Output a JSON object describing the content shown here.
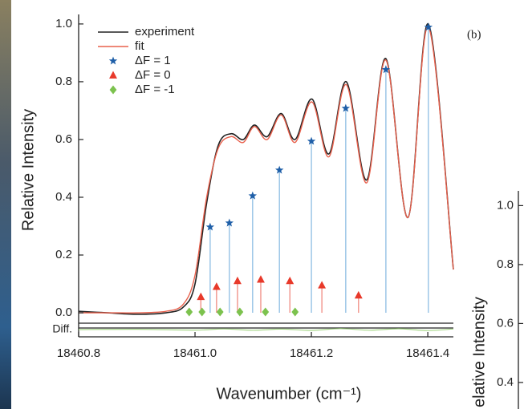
{
  "chart_data": [
    {
      "type": "line",
      "ylabel": "Relative Intensity",
      "xlabel": "Wavenumber (cm⁻¹)",
      "annotation": "(b)",
      "xlim": [
        18460.8,
        18461.444
      ],
      "ylim": [
        -0.036,
        1.033
      ],
      "xticks": [
        18460.8,
        {
          "value": 18461,
          "label": "18461.0"
        },
        18461.2,
        18461.4
      ],
      "yticks": [
        {
          "value": 0,
          "label": "0.0"
        },
        0.2,
        0.4,
        0.6,
        0.8,
        {
          "value": 1,
          "label": "1.0"
        }
      ],
      "series": [
        {
          "name": "experiment",
          "color": "#222222",
          "marker": "line",
          "x": [
            18460.8,
            18460.85,
            18460.9,
            18460.95,
            18460.98,
            18461.0,
            18461.02,
            18461.04,
            18461.062,
            18461.083,
            18461.102,
            18461.124,
            18461.148,
            18461.172,
            18461.201,
            18461.23,
            18461.26,
            18461.295,
            18461.328,
            18461.366,
            18461.401,
            18461.444
          ],
          "values": [
            0.005,
            0.0,
            -0.005,
            0.0,
            0.02,
            0.1,
            0.38,
            0.58,
            0.62,
            0.6,
            0.65,
            0.61,
            0.69,
            0.6,
            0.74,
            0.55,
            0.8,
            0.46,
            0.88,
            0.33,
            1.0,
            0.15
          ]
        },
        {
          "name": "fit",
          "color": "#e8604c",
          "marker": "line",
          "x": [
            18460.8,
            18460.85,
            18460.9,
            18460.95,
            18460.98,
            18461.0,
            18461.02,
            18461.04,
            18461.062,
            18461.083,
            18461.102,
            18461.124,
            18461.148,
            18461.172,
            18461.201,
            18461.23,
            18461.26,
            18461.295,
            18461.328,
            18461.366,
            18461.401,
            18461.444
          ],
          "values": [
            0.0,
            0.0,
            0.0,
            0.005,
            0.03,
            0.13,
            0.4,
            0.57,
            0.61,
            0.59,
            0.645,
            0.6,
            0.685,
            0.59,
            0.73,
            0.54,
            0.79,
            0.45,
            0.875,
            0.33,
            0.99,
            0.15
          ]
        },
        {
          "name": "ΔF = 1",
          "color": "#1f5fa8",
          "stem": "#8dbde3",
          "marker": "star",
          "x": [
            18461.026,
            18461.059,
            18461.099,
            18461.145,
            18461.2,
            18461.259,
            18461.328,
            18461.401
          ],
          "values": [
            0.297,
            0.311,
            0.405,
            0.494,
            0.594,
            0.708,
            0.842,
            0.989
          ]
        },
        {
          "name": "ΔF = 0",
          "color": "#e8392a",
          "stem": "#f08a80",
          "marker": "triangle",
          "x": [
            18461.01,
            18461.037,
            18461.073,
            18461.113,
            18461.163,
            18461.218,
            18461.281
          ],
          "values": [
            0.055,
            0.09,
            0.11,
            0.115,
            0.11,
            0.095,
            0.06
          ]
        },
        {
          "name": "ΔF = -1",
          "color": "#7cc24e",
          "stem": "#a8d88a",
          "marker": "diamond",
          "x": [
            18460.99,
            18461.012,
            18461.043,
            18461.077,
            18461.121,
            18461.172
          ],
          "values": [
            0.003,
            0.003,
            0.003,
            0.003,
            0.003,
            0.003
          ]
        }
      ]
    },
    {
      "type": "line",
      "ylabel": "Diff.",
      "ylim": [
        -0.03,
        0.03
      ],
      "xlim": [
        18460.8,
        18461.444
      ],
      "series": [
        {
          "color": "#a8d88a",
          "x": [
            18460.8,
            18460.9,
            18461.0,
            18461.05,
            18461.1,
            18461.15,
            18461.2,
            18461.25,
            18461.3,
            18461.35,
            18461.4,
            18461.444
          ],
          "values": [
            0.0,
            0.002,
            -0.003,
            0.004,
            -0.004,
            0.003,
            -0.005,
            0.006,
            -0.004,
            0.005,
            -0.006,
            0.004
          ]
        }
      ]
    },
    {
      "type": "line",
      "ylabel": "elative Intensity",
      "ylim": [
        0.31,
        1.05
      ],
      "yticks": [
        0.4,
        0.6,
        0.8,
        {
          "value": 1,
          "label": "1.0"
        }
      ]
    }
  ]
}
